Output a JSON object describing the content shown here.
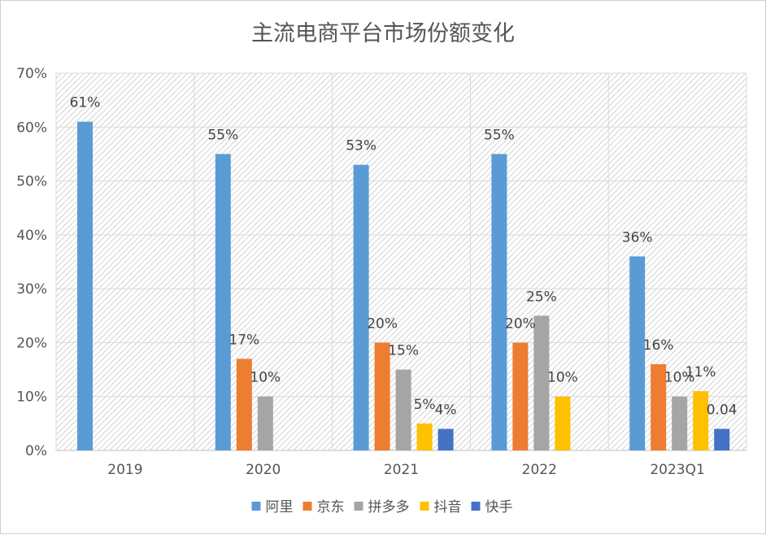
{
  "chart_data": {
    "type": "bar",
    "title": "主流电商平台市场份额变化",
    "xlabel": "",
    "ylabel": "",
    "ylim": [
      0,
      70
    ],
    "y_ticks": [
      "0%",
      "10%",
      "20%",
      "30%",
      "40%",
      "50%",
      "60%",
      "70%"
    ],
    "categories": [
      "2019",
      "2020",
      "2021",
      "2022",
      "2023Q1"
    ],
    "grid": true,
    "legend_position": "bottom",
    "series": [
      {
        "name": "阿里",
        "color": "#5B9BD5",
        "values": [
          61,
          55,
          53,
          55,
          36
        ],
        "labels": [
          "61%",
          "55%",
          "53%",
          "55%",
          "36%"
        ]
      },
      {
        "name": "京东",
        "color": "#ED7D31",
        "values": [
          null,
          17,
          20,
          20,
          16
        ],
        "labels": [
          "",
          "17%",
          "20%",
          "20%",
          "16%"
        ]
      },
      {
        "name": "拼多多",
        "color": "#A5A5A5",
        "values": [
          null,
          10,
          15,
          25,
          10
        ],
        "labels": [
          "",
          "10%",
          "15%",
          "25%",
          "10%"
        ]
      },
      {
        "name": "抖音",
        "color": "#FFC000",
        "values": [
          null,
          null,
          5,
          10,
          11
        ],
        "labels": [
          "",
          "",
          "5%",
          "10%",
          "11%"
        ]
      },
      {
        "name": "快手",
        "color": "#4472C4",
        "values": [
          null,
          null,
          4,
          null,
          4
        ],
        "labels": [
          "",
          "",
          "4%",
          "",
          "0.04"
        ]
      }
    ]
  }
}
